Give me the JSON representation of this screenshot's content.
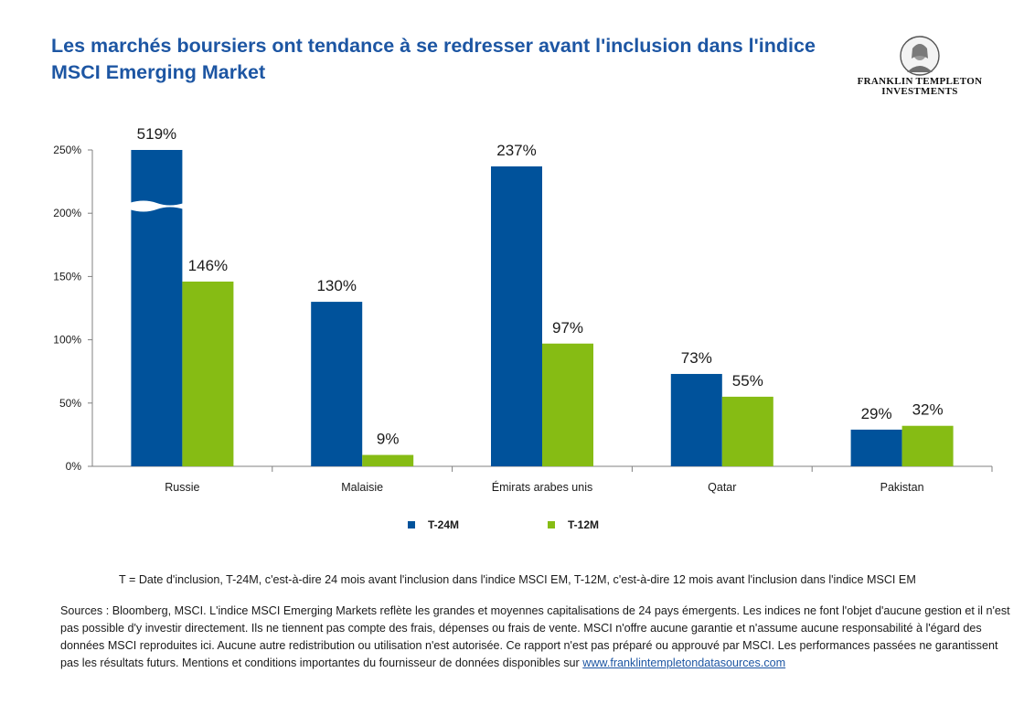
{
  "title": "Les marchés boursiers ont tendance à se redresser avant l'inclusion dans l'indice MSCI Emerging Market",
  "brand": {
    "line1": "FRANKLIN TEMPLETON",
    "line2": "INVESTMENTS"
  },
  "chart_data": {
    "type": "bar",
    "categories": [
      "Russie",
      "Malaisie",
      "Émirats arabes unis",
      "Qatar",
      "Pakistan"
    ],
    "series": [
      {
        "name": "T-24M",
        "color": "#00529b",
        "values": [
          519,
          130,
          237,
          73,
          29
        ],
        "labels": [
          "519%",
          "130%",
          "237%",
          "73%",
          "29%"
        ]
      },
      {
        "name": "T-12M",
        "color": "#86bc14",
        "values": [
          146,
          9,
          97,
          55,
          32
        ],
        "labels": [
          "146%",
          "9%",
          "97%",
          "55%",
          "32%"
        ]
      }
    ],
    "ylim": [
      0,
      250
    ],
    "yticks": [
      "0%",
      "50%",
      "100%",
      "150%",
      "200%",
      "250%"
    ],
    "axis_break": {
      "series": "T-24M",
      "category": "Russie"
    },
    "legend_position": "bottom",
    "grid": false
  },
  "footnote": "T = Date d'inclusion, T-24M, c'est-à-dire 24 mois avant l'inclusion dans l'indice MSCI EM, T-12M,  c'est-à-dire 12 mois avant l'inclusion dans l'indice MSCI EM",
  "sources": {
    "text": "Sources : Bloomberg, MSCI. L'indice MSCI Emerging Markets reflète les grandes et moyennes capitalisations de 24 pays émergents. Les indices ne font l'objet d'aucune gestion et il n'est pas possible d'y investir directement. Ils ne tiennent pas compte des frais, dépenses ou frais de vente. MSCI n'offre aucune garantie et n'assume aucune responsabilité à l'égard des données MSCI reproduites ici. Aucune autre redistribution ou utilisation  n'est autorisée. Ce rapport n'est pas préparé ou approuvé par MSCI. Les performances passées ne garantissent pas les résultats futurs. Mentions et conditions importantes du fournisseur de données disponibles sur ",
    "link": "www.franklintempletondatasources.com"
  }
}
